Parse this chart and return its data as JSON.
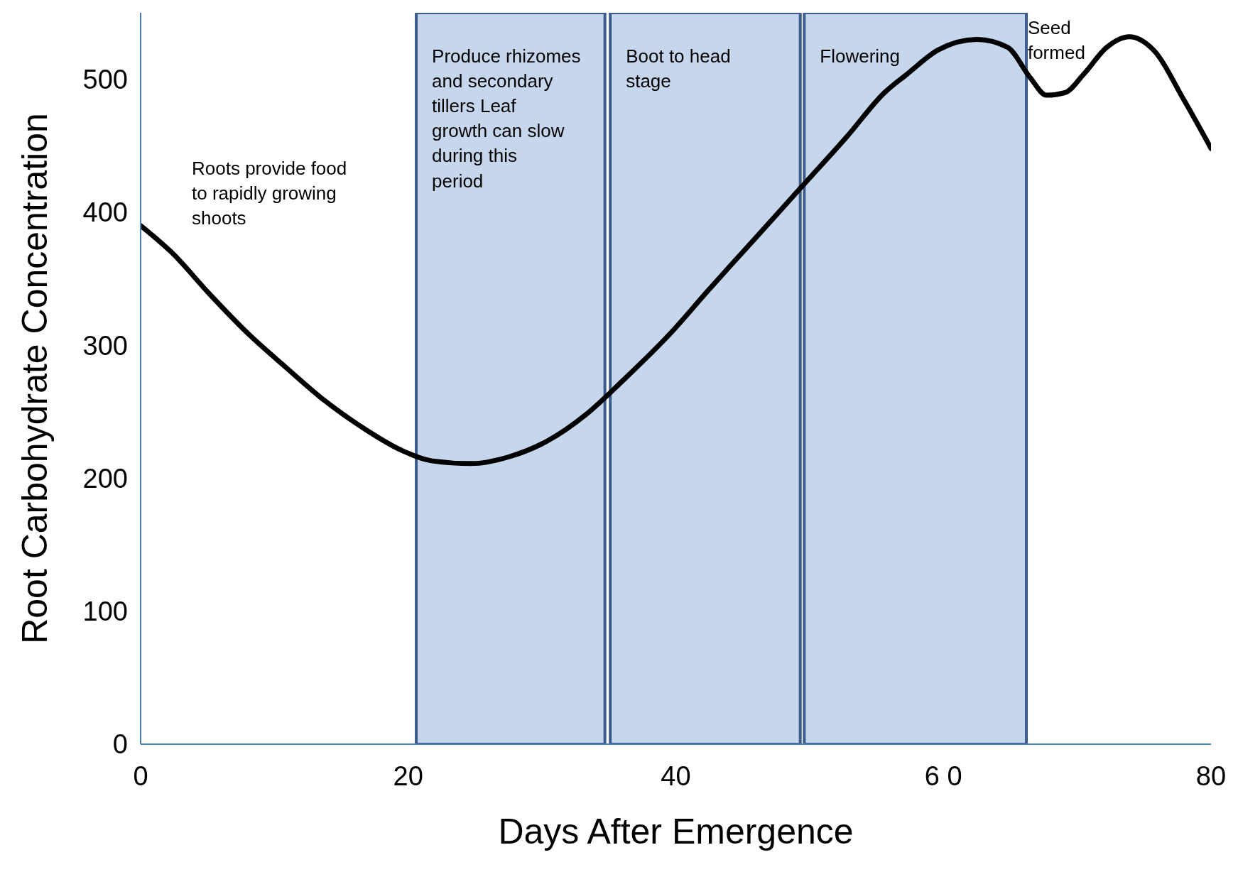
{
  "chart_data": {
    "type": "line",
    "xlabel": "Days After Emergence",
    "ylabel": "Root Carbohydrate  Concentration",
    "x": [
      0,
      2.3,
      5.2,
      8.0,
      10.9,
      13.8,
      16.6,
      19.5,
      21.8,
      24.7,
      27.5,
      30.4,
      33.3,
      36.1,
      39.6,
      42.4,
      45.9,
      49.3,
      52.8,
      55.6,
      57.3,
      59.6,
      62.5,
      64.8,
      66.5,
      67.7,
      69.1,
      70.5,
      72.2,
      73.9,
      75.7,
      78.0,
      80
    ],
    "series": [
      {
        "color": "#000000",
        "values": [
          390,
          370,
          338,
          309,
          283,
          258,
          238,
          221,
          213,
          211,
          216,
          228,
          248,
          274,
          309,
          341,
          380,
          418,
          457,
          490,
          504,
          522,
          530,
          524,
          501,
          488,
          490,
          504,
          524,
          532,
          522,
          484,
          448
        ]
      }
    ],
    "xlim": [
      0,
      80
    ],
    "xticks": [
      0,
      20,
      40,
      {
        "value": 60,
        "label": "6 0"
      },
      80
    ],
    "ylim": [
      0,
      550
    ],
    "yticks": [
      0,
      100,
      200,
      300,
      400,
      500
    ],
    "bands": [
      {
        "axis": "x",
        "from": 20.6,
        "to": 34.7,
        "label": "Produce rhizomes and secondary tillers Leaf growth can slow during this period",
        "color": "#c6d6ec"
      },
      {
        "axis": "x",
        "from": 35.1,
        "to": 49.3,
        "label": "Boot to head stage",
        "color": "#c6d6ec"
      },
      {
        "axis": "x",
        "from": 49.6,
        "to": 66.2,
        "label": "Flowering",
        "color": "#c6d6ec"
      }
    ],
    "annotations": [
      "Roots provide food to rapidly growing shoots",
      {
        "text": "Seed formed",
        "x": 66.3,
        "y": 548
      }
    ],
    "marker": "none",
    "line_style": "solid"
  }
}
